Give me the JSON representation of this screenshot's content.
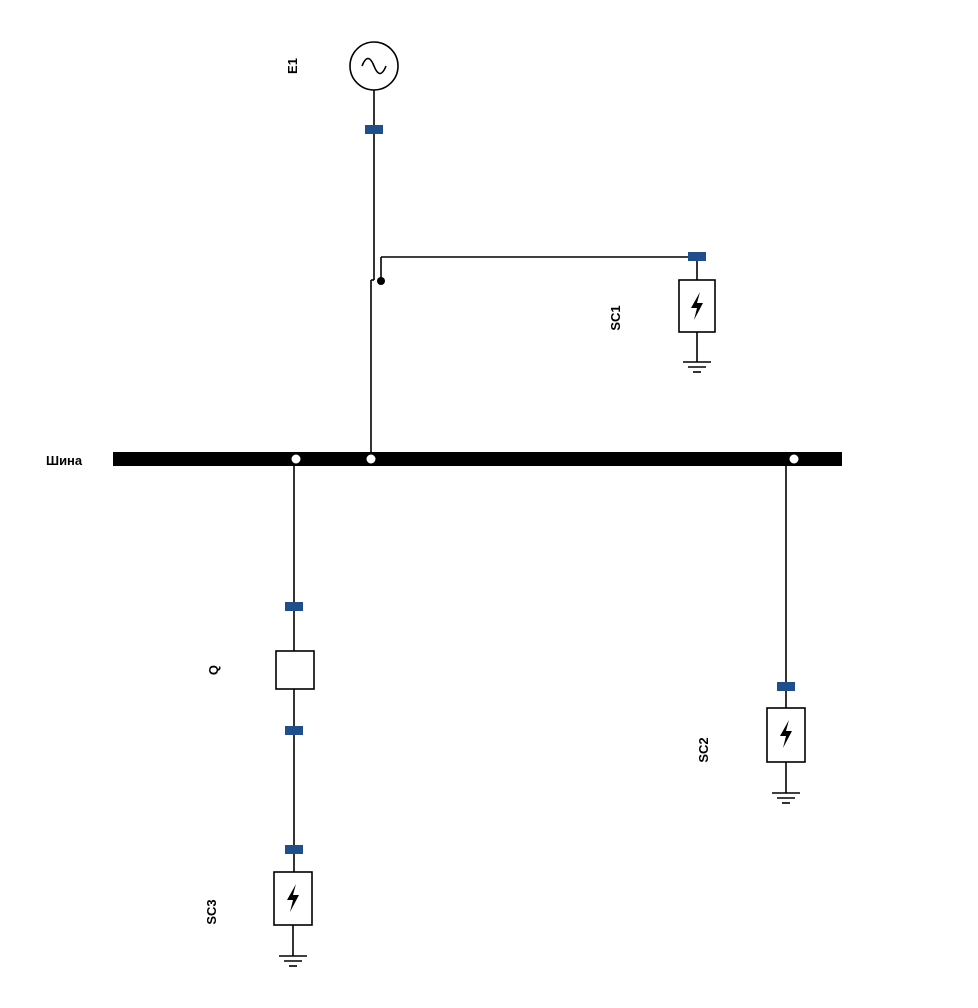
{
  "labels": {
    "bus": "Шина",
    "generator": "E1",
    "breaker": "Q",
    "sc1": "SC1",
    "sc2": "SC2",
    "sc3": "SC3"
  },
  "colors": {
    "port": "#1f4e8c",
    "line": "#000000"
  },
  "icons": {
    "generator": "ac-sine-icon",
    "short_circuit": "lightning-icon",
    "ground": "ground-icon"
  }
}
